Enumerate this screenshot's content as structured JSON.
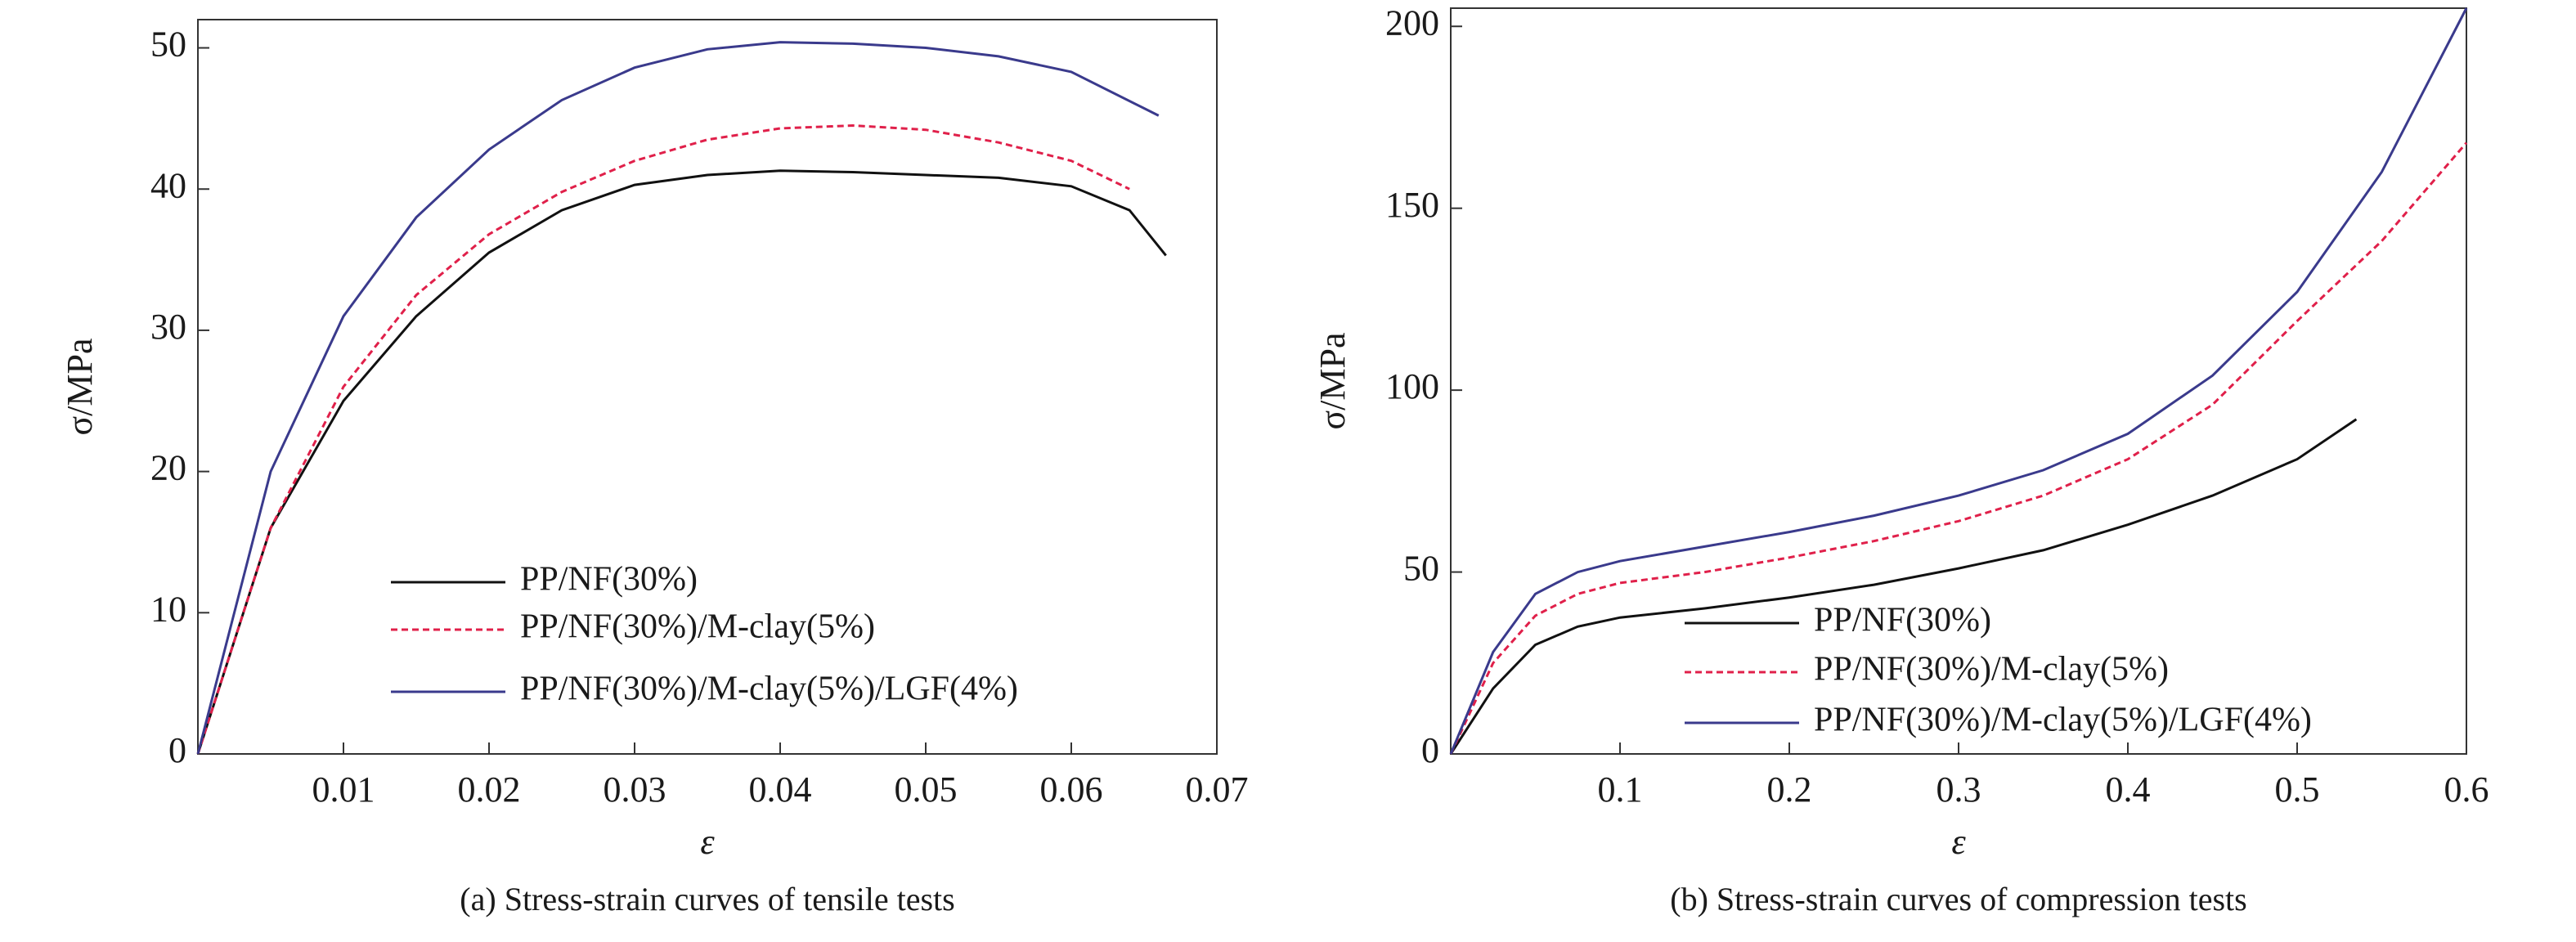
{
  "chart_data": [
    {
      "type": "line",
      "caption": "(a) Stress-strain curves of tensile tests",
      "xlabel": "ε",
      "ylabel": "σ/MPa",
      "xlim": [
        0,
        0.07
      ],
      "xticks": [
        0.01,
        0.02,
        0.03,
        0.04,
        0.05,
        0.06,
        0.07
      ],
      "ylim": [
        0,
        52
      ],
      "yticks": [
        0,
        10,
        20,
        30,
        40,
        50
      ],
      "legend": "lower center",
      "series": [
        {
          "name": "PP/NF(30%)",
          "color": "#111111",
          "line_style": "solid",
          "x": [
            0,
            0.005,
            0.01,
            0.015,
            0.02,
            0.025,
            0.03,
            0.035,
            0.04,
            0.045,
            0.05,
            0.055,
            0.06,
            0.064,
            0.0665
          ],
          "values": [
            0,
            16,
            25,
            31,
            35.5,
            38.5,
            40.3,
            41,
            41.3,
            41.2,
            41,
            40.8,
            40.2,
            38.5,
            35.3
          ]
        },
        {
          "name": "PP/NF(30%)/M-clay(5%)",
          "color": "#e0204a",
          "line_style": "dashed",
          "x": [
            0,
            0.005,
            0.01,
            0.015,
            0.02,
            0.025,
            0.03,
            0.035,
            0.04,
            0.045,
            0.05,
            0.055,
            0.06,
            0.064
          ],
          "values": [
            0,
            16,
            26,
            32.5,
            36.8,
            39.8,
            42,
            43.5,
            44.3,
            44.5,
            44.2,
            43.3,
            42,
            40
          ]
        },
        {
          "name": "PP/NF(30%)/M-clay(5%)/LGF(4%)",
          "color": "#3a3a8c",
          "line_style": "solid",
          "x": [
            0,
            0.005,
            0.01,
            0.015,
            0.02,
            0.025,
            0.03,
            0.035,
            0.04,
            0.045,
            0.05,
            0.055,
            0.06,
            0.066
          ],
          "values": [
            0,
            20,
            31,
            38,
            42.8,
            46.3,
            48.6,
            49.9,
            50.4,
            50.3,
            50,
            49.4,
            48.3,
            45.2
          ]
        }
      ]
    },
    {
      "type": "line",
      "caption": "(b) Stress-strain curves of compression tests",
      "xlabel": "ε",
      "ylabel": "σ/MPa",
      "xlim": [
        0,
        0.6
      ],
      "xticks": [
        0.1,
        0.2,
        0.3,
        0.4,
        0.5,
        0.6
      ],
      "ylim": [
        0,
        205
      ],
      "yticks": [
        0,
        50,
        100,
        150,
        200
      ],
      "legend": "lower right",
      "series": [
        {
          "name": "PP/NF(30%)",
          "color": "#111111",
          "line_style": "solid",
          "x": [
            0,
            0.025,
            0.05,
            0.075,
            0.1,
            0.15,
            0.2,
            0.25,
            0.3,
            0.35,
            0.4,
            0.45,
            0.5,
            0.535
          ],
          "values": [
            0,
            18,
            30,
            35,
            37.5,
            40,
            43,
            46.5,
            51,
            56,
            63,
            71,
            81,
            92
          ]
        },
        {
          "name": "PP/NF(30%)/M-clay(5%)",
          "color": "#e0204a",
          "line_style": "dashed",
          "x": [
            0,
            0.025,
            0.05,
            0.075,
            0.1,
            0.15,
            0.2,
            0.25,
            0.3,
            0.35,
            0.4,
            0.45,
            0.5,
            0.55,
            0.6
          ],
          "values": [
            0,
            25,
            38,
            44,
            47,
            50,
            54,
            58.5,
            64,
            71,
            81,
            96,
            119,
            141,
            168
          ]
        },
        {
          "name": "PP/NF(30%)/M-clay(5%)/LGF(4%)",
          "color": "#3a3a8c",
          "line_style": "solid",
          "x": [
            0,
            0.025,
            0.05,
            0.075,
            0.1,
            0.15,
            0.2,
            0.25,
            0.3,
            0.35,
            0.4,
            0.45,
            0.5,
            0.55,
            0.6
          ],
          "values": [
            0,
            28,
            44,
            50,
            53,
            57,
            61,
            65.5,
            71,
            78,
            88,
            104,
            127,
            160,
            205
          ]
        }
      ]
    }
  ]
}
